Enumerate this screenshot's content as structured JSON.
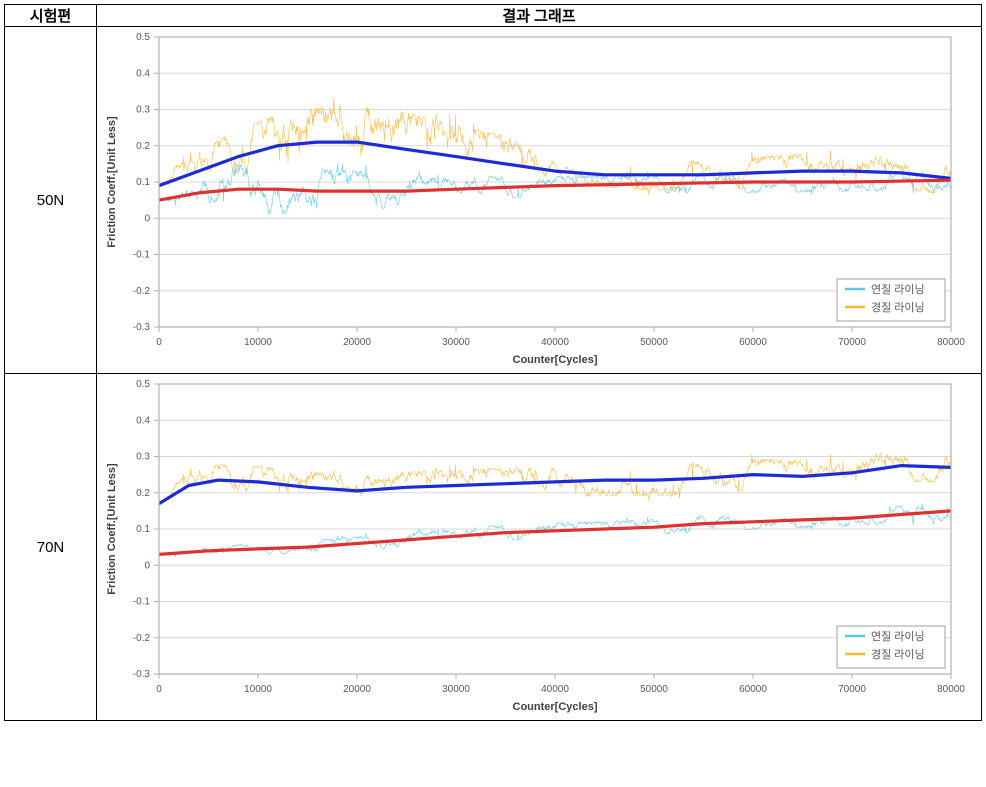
{
  "table": {
    "header_left": "시험편",
    "header_right": "결과 그래프"
  },
  "rows": [
    {
      "label": "50N",
      "chart_key": "chart50"
    },
    {
      "label": "70N",
      "chart_key": "chart70"
    }
  ],
  "common": {
    "x_label": "Counter[Cycles]",
    "y_label": "Friction Coeff.[Unit Less]",
    "x_min": 0,
    "x_max": 80000,
    "x_ticks": [
      0,
      10000,
      20000,
      30000,
      40000,
      50000,
      60000,
      70000,
      80000
    ],
    "y_min": -0.3,
    "y_max": 0.5,
    "y_ticks": [
      -0.3,
      -0.2,
      -0.1,
      0,
      0.1,
      0.2,
      0.3,
      0.4,
      0.5
    ],
    "axis_label_fontsize": 11,
    "tick_fontsize": 10,
    "legend_fontsize": 11,
    "legend_items": [
      {
        "label": "연질 라이닝",
        "color": "#5bc7e8"
      },
      {
        "label": "경질 라이닝",
        "color": "#f6b93b"
      }
    ],
    "colors": {
      "plot_border": "#b0b0b0",
      "grid": "#d8d8d8",
      "text": "#595959",
      "bold_text": "#404040",
      "legend_border": "#a0a0a0",
      "legend_bg": "#ffffff",
      "soft_noise": "#5bc7e8",
      "hard_noise": "#f6b93b",
      "soft_trend": "#e03131",
      "hard_trend": "#1c2bd9"
    },
    "line_widths": {
      "noise": 0.6,
      "trend": 3.2,
      "grid": 1,
      "border": 1.2
    }
  },
  "chart50": {
    "soft_mean": [
      [
        0,
        0.05
      ],
      [
        4000,
        0.07
      ],
      [
        8000,
        0.08
      ],
      [
        12000,
        0.08
      ],
      [
        16000,
        0.075
      ],
      [
        20000,
        0.075
      ],
      [
        25000,
        0.075
      ],
      [
        30000,
        0.08
      ],
      [
        35000,
        0.085
      ],
      [
        40000,
        0.09
      ],
      [
        50000,
        0.095
      ],
      [
        60000,
        0.1
      ],
      [
        70000,
        0.1
      ],
      [
        80000,
        0.105
      ]
    ],
    "soft_band_half": [
      [
        0,
        0.02
      ],
      [
        4000,
        0.05
      ],
      [
        8000,
        0.08
      ],
      [
        12000,
        0.08
      ],
      [
        16000,
        0.07
      ],
      [
        20000,
        0.065
      ],
      [
        25000,
        0.05
      ],
      [
        30000,
        0.04
      ],
      [
        35000,
        0.035
      ],
      [
        40000,
        0.03
      ],
      [
        50000,
        0.03
      ],
      [
        60000,
        0.035
      ],
      [
        70000,
        0.03
      ],
      [
        80000,
        0.03
      ]
    ],
    "hard_mean": [
      [
        0,
        0.09
      ],
      [
        4000,
        0.13
      ],
      [
        8000,
        0.17
      ],
      [
        12000,
        0.2
      ],
      [
        16000,
        0.21
      ],
      [
        20000,
        0.21
      ],
      [
        25000,
        0.19
      ],
      [
        30000,
        0.17
      ],
      [
        35000,
        0.15
      ],
      [
        40000,
        0.13
      ],
      [
        45000,
        0.12
      ],
      [
        50000,
        0.12
      ],
      [
        55000,
        0.12
      ],
      [
        60000,
        0.125
      ],
      [
        65000,
        0.13
      ],
      [
        70000,
        0.13
      ],
      [
        75000,
        0.125
      ],
      [
        80000,
        0.11
      ]
    ],
    "hard_band_half": [
      [
        0,
        0.03
      ],
      [
        4000,
        0.06
      ],
      [
        8000,
        0.09
      ],
      [
        12000,
        0.1
      ],
      [
        16000,
        0.11
      ],
      [
        20000,
        0.13
      ],
      [
        25000,
        0.12
      ],
      [
        30000,
        0.1
      ],
      [
        35000,
        0.09
      ],
      [
        40000,
        0.03
      ],
      [
        45000,
        0.04
      ],
      [
        50000,
        0.05
      ],
      [
        55000,
        0.045
      ],
      [
        60000,
        0.05
      ],
      [
        65000,
        0.055
      ],
      [
        70000,
        0.05
      ],
      [
        75000,
        0.05
      ],
      [
        80000,
        0.055
      ]
    ]
  },
  "chart70": {
    "soft_mean": [
      [
        0,
        0.03
      ],
      [
        5000,
        0.04
      ],
      [
        10000,
        0.045
      ],
      [
        15000,
        0.05
      ],
      [
        20000,
        0.06
      ],
      [
        25000,
        0.07
      ],
      [
        30000,
        0.08
      ],
      [
        35000,
        0.09
      ],
      [
        40000,
        0.095
      ],
      [
        45000,
        0.1
      ],
      [
        50000,
        0.105
      ],
      [
        55000,
        0.115
      ],
      [
        60000,
        0.12
      ],
      [
        65000,
        0.125
      ],
      [
        70000,
        0.13
      ],
      [
        75000,
        0.14
      ],
      [
        80000,
        0.15
      ]
    ],
    "soft_band_half": [
      [
        0,
        0.015
      ],
      [
        5000,
        0.015
      ],
      [
        10000,
        0.018
      ],
      [
        15000,
        0.02
      ],
      [
        20000,
        0.022
      ],
      [
        25000,
        0.025
      ],
      [
        30000,
        0.025
      ],
      [
        35000,
        0.025
      ],
      [
        40000,
        0.025
      ],
      [
        45000,
        0.025
      ],
      [
        50000,
        0.025
      ],
      [
        55000,
        0.025
      ],
      [
        60000,
        0.025
      ],
      [
        65000,
        0.025
      ],
      [
        70000,
        0.025
      ],
      [
        75000,
        0.028
      ],
      [
        80000,
        0.03
      ]
    ],
    "hard_mean": [
      [
        0,
        0.17
      ],
      [
        3000,
        0.22
      ],
      [
        6000,
        0.235
      ],
      [
        10000,
        0.23
      ],
      [
        15000,
        0.215
      ],
      [
        20000,
        0.205
      ],
      [
        25000,
        0.215
      ],
      [
        30000,
        0.22
      ],
      [
        35000,
        0.225
      ],
      [
        40000,
        0.23
      ],
      [
        45000,
        0.235
      ],
      [
        50000,
        0.235
      ],
      [
        55000,
        0.24
      ],
      [
        60000,
        0.25
      ],
      [
        65000,
        0.245
      ],
      [
        70000,
        0.255
      ],
      [
        75000,
        0.275
      ],
      [
        80000,
        0.27
      ]
    ],
    "hard_band_half": [
      [
        0,
        0.02
      ],
      [
        3000,
        0.04
      ],
      [
        6000,
        0.05
      ],
      [
        10000,
        0.05
      ],
      [
        15000,
        0.05
      ],
      [
        20000,
        0.05
      ],
      [
        25000,
        0.05
      ],
      [
        30000,
        0.05
      ],
      [
        35000,
        0.05
      ],
      [
        40000,
        0.05
      ],
      [
        45000,
        0.05
      ],
      [
        50000,
        0.05
      ],
      [
        55000,
        0.05
      ],
      [
        60000,
        0.05
      ],
      [
        65000,
        0.05
      ],
      [
        70000,
        0.05
      ],
      [
        75000,
        0.05
      ],
      [
        80000,
        0.05
      ]
    ]
  }
}
